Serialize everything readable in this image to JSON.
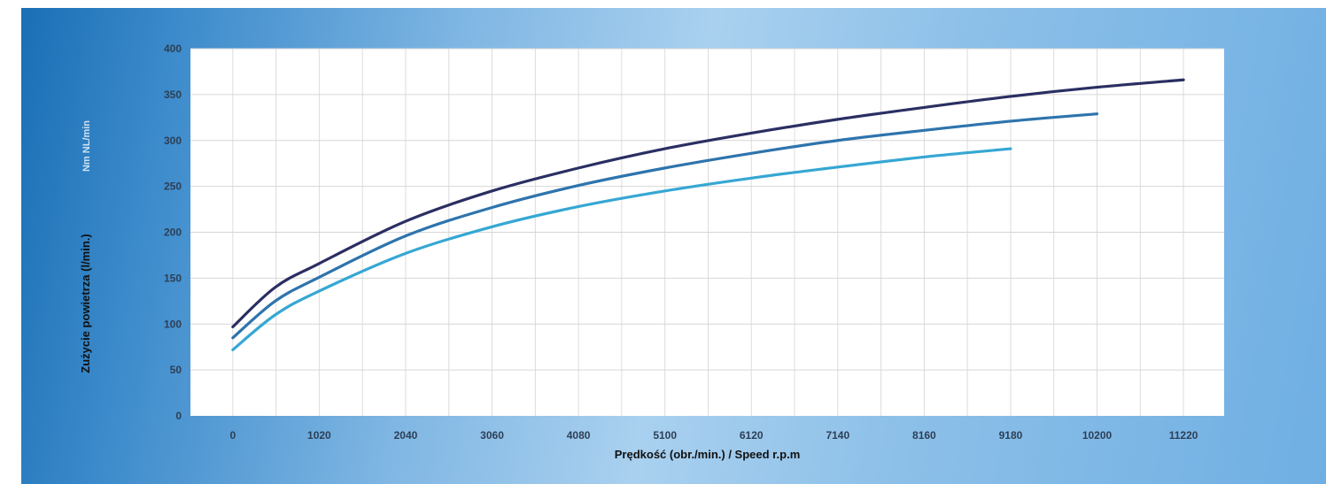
{
  "chart_data": {
    "type": "line",
    "title": "",
    "xlabel": "Prędkość (obr./min.) / Speed r.p.m",
    "ylabel": "Zużycie powietrza (l/min.)",
    "ylabel_faded": "Nm NL/min",
    "xlim": [
      -500,
      11700
    ],
    "ylim": [
      0,
      400
    ],
    "x_ticks": [
      0,
      1020,
      2040,
      3060,
      4080,
      5100,
      6120,
      7140,
      8160,
      9180,
      10200,
      11220
    ],
    "y_ticks": [
      0,
      50,
      100,
      150,
      200,
      250,
      300,
      350,
      400
    ],
    "grid": true,
    "legend": "none",
    "series": [
      {
        "color": "#2a2f62",
        "x": [
          0,
          500,
          1020,
          2040,
          3060,
          4080,
          5100,
          6120,
          7140,
          8160,
          9180,
          10200,
          11220
        ],
        "y": [
          97,
          140,
          166,
          212,
          245,
          270,
          291,
          308,
          323,
          336,
          348,
          358,
          366
        ]
      },
      {
        "color": "#2e74ad",
        "x": [
          0,
          500,
          1020,
          2040,
          3060,
          4080,
          5100,
          6120,
          7140,
          8160,
          9180,
          10200
        ],
        "y": [
          85,
          125,
          151,
          196,
          227,
          251,
          270,
          286,
          300,
          311,
          321,
          329
        ]
      },
      {
        "color": "#36a7d3",
        "x": [
          0,
          500,
          1020,
          2040,
          3060,
          4080,
          5100,
          6120,
          7140,
          8160,
          9180
        ],
        "y": [
          72,
          110,
          136,
          177,
          206,
          228,
          245,
          259,
          271,
          282,
          291
        ]
      }
    ]
  }
}
